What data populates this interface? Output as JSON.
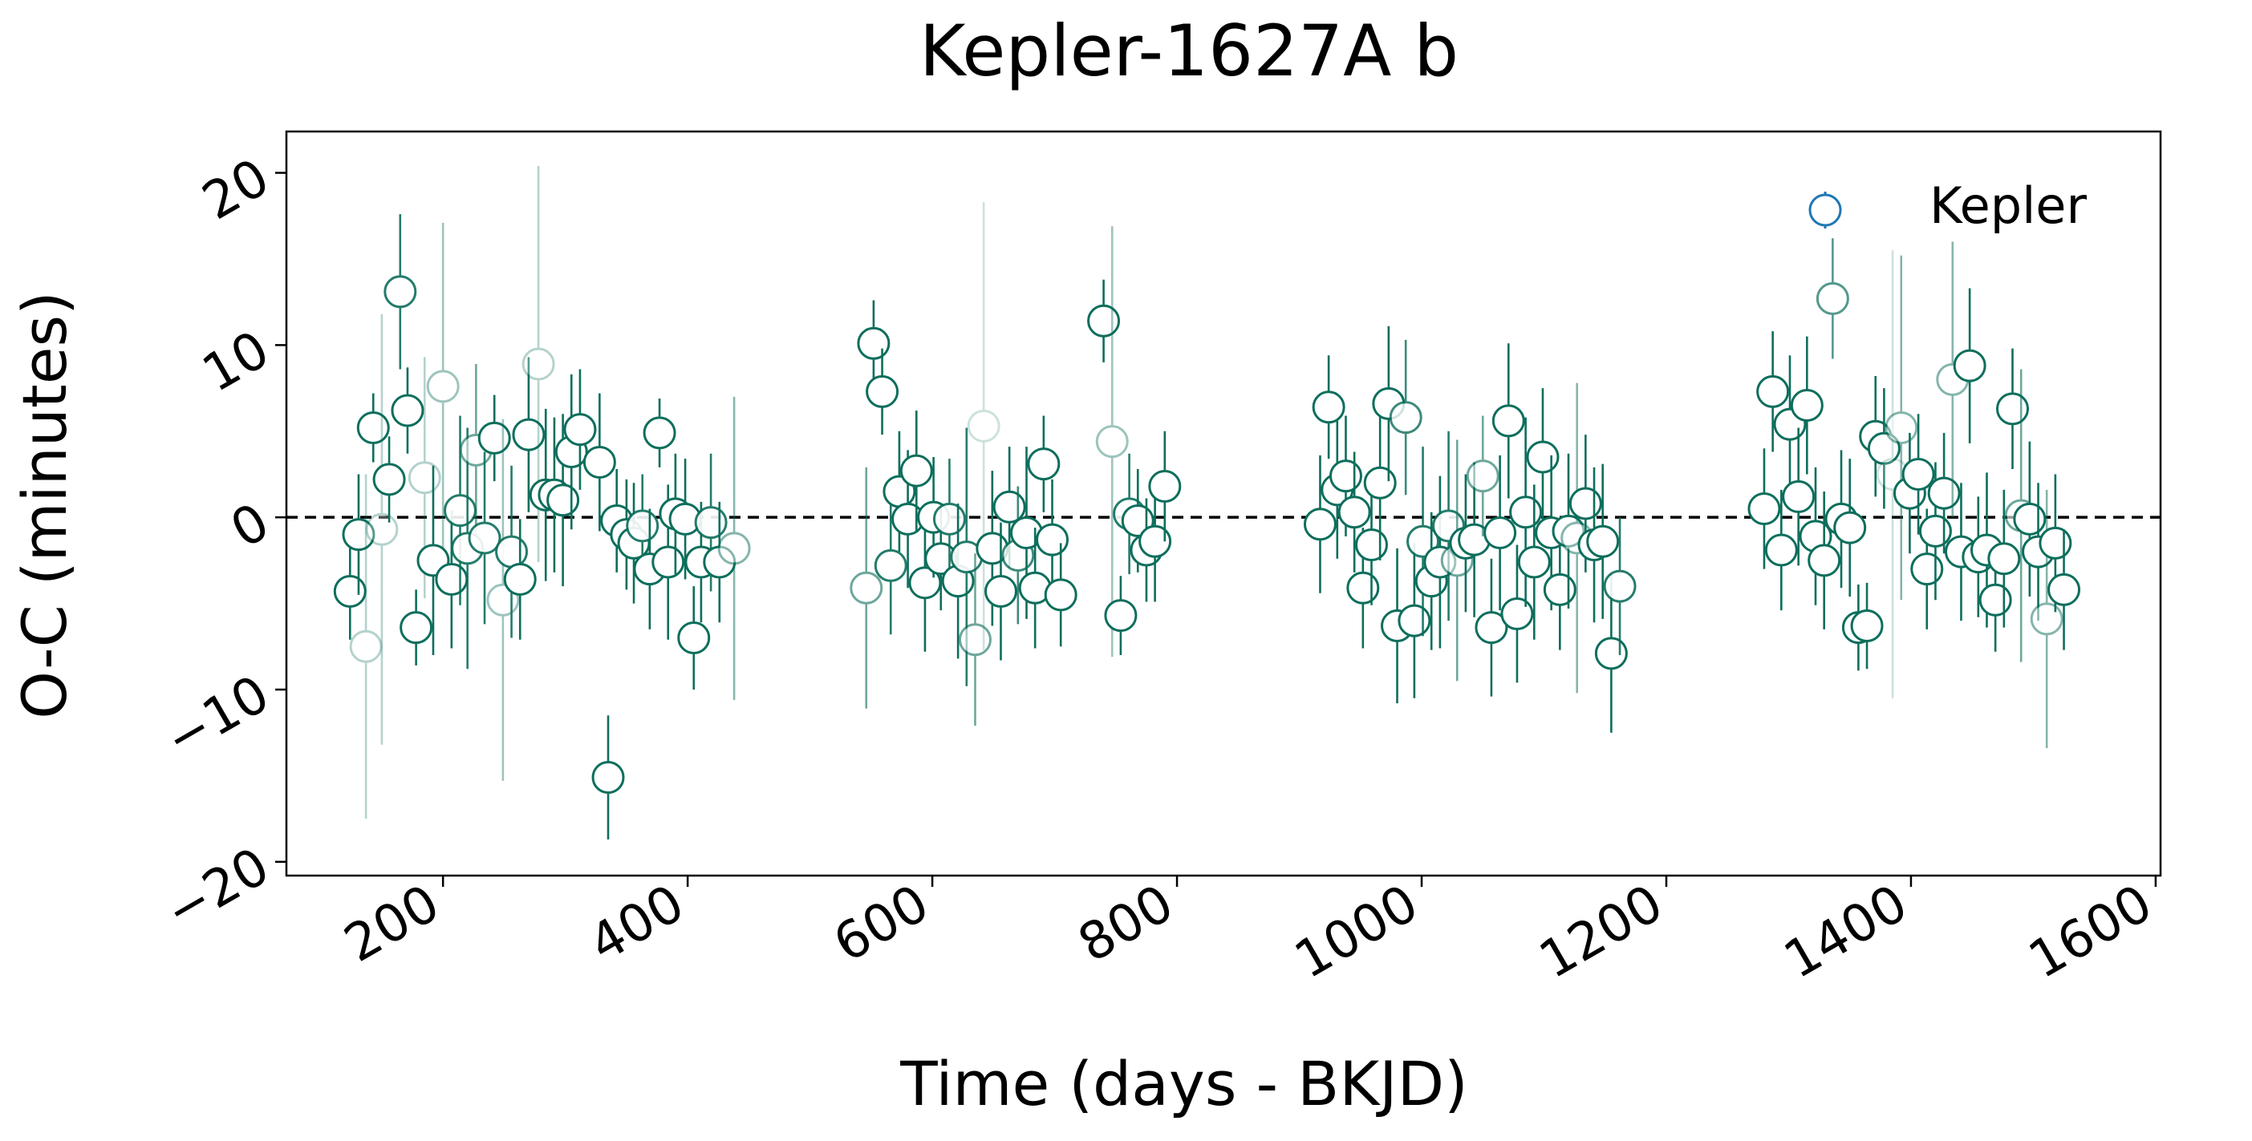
{
  "chart_data": {
    "type": "scatter",
    "title": "Kepler-1627A b",
    "xlabel": "Time (days - BKJD)",
    "ylabel": "O-C (minutes)",
    "xlim": [
      72,
      1604
    ],
    "ylim": [
      -20.8,
      22.4
    ],
    "xticks": [
      200,
      400,
      600,
      800,
      1000,
      1200,
      1400,
      1600
    ],
    "yticks": [
      -20,
      -10,
      0,
      10,
      20
    ],
    "xtick_labels": [
      "200",
      "400",
      "600",
      "800",
      "1000",
      "1200",
      "1400",
      "1600"
    ],
    "ytick_labels": [
      "−20",
      "−10",
      "0",
      "10",
      "20"
    ],
    "reference_line": 0,
    "grid": false,
    "legend": {
      "position": "top-right",
      "entries": [
        "Kepler"
      ]
    },
    "colors": {
      "marker": "#0d6e5c",
      "legend_marker": "#1f77b4",
      "face": "#ffffff",
      "ref_line": "#000000"
    },
    "series": [
      {
        "name": "Kepler",
        "points": [
          {
            "x": 124,
            "y": -4.3,
            "err": 2.8,
            "alpha": 1.0
          },
          {
            "x": 131,
            "y": -1.0,
            "err": 3.5,
            "alpha": 1.0
          },
          {
            "x": 137,
            "y": -7.5,
            "err": 10.0,
            "alpha": 0.3
          },
          {
            "x": 143,
            "y": 5.2,
            "err": 2.0,
            "alpha": 1.0
          },
          {
            "x": 150,
            "y": -0.7,
            "err": 12.5,
            "alpha": 0.3
          },
          {
            "x": 156,
            "y": 2.2,
            "err": 2.5,
            "alpha": 1.0
          },
          {
            "x": 165,
            "y": 13.1,
            "err": 4.5,
            "alpha": 0.9
          },
          {
            "x": 171,
            "y": 6.2,
            "err": 2.5,
            "alpha": 1.0
          },
          {
            "x": 178,
            "y": -6.4,
            "err": 2.2,
            "alpha": 1.0
          },
          {
            "x": 185,
            "y": 2.3,
            "err": 7.0,
            "alpha": 0.3
          },
          {
            "x": 192,
            "y": -2.5,
            "err": 5.5,
            "alpha": 1.0
          },
          {
            "x": 200,
            "y": 7.6,
            "err": 9.5,
            "alpha": 0.4
          },
          {
            "x": 207,
            "y": -3.6,
            "err": 4.0,
            "alpha": 1.0
          },
          {
            "x": 214,
            "y": 0.4,
            "err": 5.5,
            "alpha": 0.9
          },
          {
            "x": 220,
            "y": -1.8,
            "err": 7.0,
            "alpha": 0.9
          },
          {
            "x": 227,
            "y": 3.9,
            "err": 5.0,
            "alpha": 0.6
          },
          {
            "x": 234,
            "y": -1.2,
            "err": 5.0,
            "alpha": 0.9
          },
          {
            "x": 242,
            "y": 4.6,
            "err": 2.5,
            "alpha": 1.0
          },
          {
            "x": 249,
            "y": -4.8,
            "err": 10.5,
            "alpha": 0.4
          },
          {
            "x": 256,
            "y": -2.0,
            "err": 5.0,
            "alpha": 0.9
          },
          {
            "x": 263,
            "y": -3.6,
            "err": 3.5,
            "alpha": 1.0
          },
          {
            "x": 270,
            "y": 4.8,
            "err": 4.5,
            "alpha": 1.0
          },
          {
            "x": 278,
            "y": 8.9,
            "err": 11.5,
            "alpha": 0.3
          },
          {
            "x": 284,
            "y": 1.3,
            "err": 5.0,
            "alpha": 1.0
          },
          {
            "x": 291,
            "y": 1.3,
            "err": 4.5,
            "alpha": 1.0
          },
          {
            "x": 298,
            "y": 1.0,
            "err": 5.0,
            "alpha": 1.0
          },
          {
            "x": 305,
            "y": 3.8,
            "err": 4.5,
            "alpha": 1.0
          },
          {
            "x": 312,
            "y": 5.1,
            "err": 3.5,
            "alpha": 1.0
          },
          {
            "x": 328,
            "y": 3.2,
            "err": 4.0,
            "alpha": 1.0
          },
          {
            "x": 335,
            "y": -15.1,
            "err": 3.6,
            "alpha": 1.0
          },
          {
            "x": 342,
            "y": -0.2,
            "err": 3.0,
            "alpha": 1.0
          },
          {
            "x": 350,
            "y": -1.0,
            "err": 3.2,
            "alpha": 1.0
          },
          {
            "x": 356,
            "y": -1.5,
            "err": 3.5,
            "alpha": 1.0
          },
          {
            "x": 363,
            "y": -0.5,
            "err": 3.0,
            "alpha": 0.9
          },
          {
            "x": 369,
            "y": -3.0,
            "err": 3.5,
            "alpha": 1.0
          },
          {
            "x": 377,
            "y": 4.9,
            "err": 2.0,
            "alpha": 1.0
          },
          {
            "x": 384,
            "y": -2.6,
            "err": 4.5,
            "alpha": 1.0
          },
          {
            "x": 390,
            "y": 0.2,
            "err": 3.5,
            "alpha": 1.0
          },
          {
            "x": 398,
            "y": -0.1,
            "err": 3.5,
            "alpha": 1.0
          },
          {
            "x": 405,
            "y": -7.0,
            "err": 3.0,
            "alpha": 1.0
          },
          {
            "x": 411,
            "y": -2.6,
            "err": 3.5,
            "alpha": 1.0
          },
          {
            "x": 419,
            "y": -0.3,
            "err": 4.0,
            "alpha": 0.9
          },
          {
            "x": 426,
            "y": -2.6,
            "err": 3.5,
            "alpha": 1.0
          },
          {
            "x": 438,
            "y": -1.8,
            "err": 8.8,
            "alpha": 0.5
          },
          {
            "x": 546,
            "y": -4.1,
            "err": 7.0,
            "alpha": 0.6
          },
          {
            "x": 552,
            "y": 10.1,
            "err": 2.5,
            "alpha": 1.0
          },
          {
            "x": 559,
            "y": 7.3,
            "err": 2.5,
            "alpha": 1.0
          },
          {
            "x": 566,
            "y": -2.8,
            "err": 4.0,
            "alpha": 0.9
          },
          {
            "x": 573,
            "y": 1.5,
            "err": 3.5,
            "alpha": 1.0
          },
          {
            "x": 580,
            "y": -0.1,
            "err": 4.0,
            "alpha": 1.0
          },
          {
            "x": 587,
            "y": 2.7,
            "err": 3.5,
            "alpha": 1.0
          },
          {
            "x": 594,
            "y": -3.8,
            "err": 4.0,
            "alpha": 1.0
          },
          {
            "x": 601,
            "y": 0.0,
            "err": 3.5,
            "alpha": 1.0
          },
          {
            "x": 607,
            "y": -2.4,
            "err": 3.0,
            "alpha": 1.0
          },
          {
            "x": 614,
            "y": -0.1,
            "err": 3.5,
            "alpha": 0.9
          },
          {
            "x": 621,
            "y": -3.7,
            "err": 4.5,
            "alpha": 1.0
          },
          {
            "x": 628,
            "y": -2.3,
            "err": 7.5,
            "alpha": 0.9
          },
          {
            "x": 635,
            "y": -7.1,
            "err": 5.0,
            "alpha": 0.6
          },
          {
            "x": 642,
            "y": 5.3,
            "err": 13.0,
            "alpha": 0.2
          },
          {
            "x": 649,
            "y": -1.8,
            "err": 4.5,
            "alpha": 1.0
          },
          {
            "x": 656,
            "y": -4.3,
            "err": 4.0,
            "alpha": 1.0
          },
          {
            "x": 663,
            "y": 0.6,
            "err": 3.5,
            "alpha": 1.0
          },
          {
            "x": 670,
            "y": -2.2,
            "err": 4.0,
            "alpha": 0.8
          },
          {
            "x": 677,
            "y": -0.9,
            "err": 5.0,
            "alpha": 1.0
          },
          {
            "x": 684,
            "y": -4.1,
            "err": 3.5,
            "alpha": 1.0
          },
          {
            "x": 691,
            "y": 3.1,
            "err": 2.8,
            "alpha": 1.0
          },
          {
            "x": 698,
            "y": -1.3,
            "err": 3.5,
            "alpha": 1.0
          },
          {
            "x": 705,
            "y": -4.5,
            "err": 3.0,
            "alpha": 1.0
          },
          {
            "x": 740,
            "y": 11.4,
            "err": 2.4,
            "alpha": 1.0
          },
          {
            "x": 747,
            "y": 4.4,
            "err": 12.5,
            "alpha": 0.4
          },
          {
            "x": 754,
            "y": -5.7,
            "err": 2.3,
            "alpha": 1.0
          },
          {
            "x": 761,
            "y": 0.2,
            "err": 3.5,
            "alpha": 0.9
          },
          {
            "x": 768,
            "y": -0.2,
            "err": 3.0,
            "alpha": 1.0
          },
          {
            "x": 775,
            "y": -1.9,
            "err": 3.0,
            "alpha": 1.0
          },
          {
            "x": 782,
            "y": -1.4,
            "err": 3.5,
            "alpha": 1.0
          },
          {
            "x": 790,
            "y": 1.8,
            "err": 3.2,
            "alpha": 1.0
          },
          {
            "x": 917,
            "y": -0.4,
            "err": 4.0,
            "alpha": 1.0
          },
          {
            "x": 924,
            "y": 6.4,
            "err": 3.0,
            "alpha": 1.0
          },
          {
            "x": 931,
            "y": 1.6,
            "err": 4.0,
            "alpha": 1.0
          },
          {
            "x": 938,
            "y": 2.4,
            "err": 3.5,
            "alpha": 1.0
          },
          {
            "x": 945,
            "y": 0.3,
            "err": 3.5,
            "alpha": 1.0
          },
          {
            "x": 952,
            "y": -4.1,
            "err": 3.5,
            "alpha": 1.0
          },
          {
            "x": 959,
            "y": -1.6,
            "err": 3.5,
            "alpha": 1.0
          },
          {
            "x": 966,
            "y": 2.0,
            "err": 4.5,
            "alpha": 1.0
          },
          {
            "x": 973,
            "y": 6.6,
            "err": 4.5,
            "alpha": 1.0
          },
          {
            "x": 980,
            "y": -6.3,
            "err": 4.5,
            "alpha": 1.0
          },
          {
            "x": 987,
            "y": 5.8,
            "err": 4.5,
            "alpha": 0.8
          },
          {
            "x": 994,
            "y": -6.0,
            "err": 4.5,
            "alpha": 1.0
          },
          {
            "x": 1001,
            "y": -1.4,
            "err": 5.5,
            "alpha": 0.9
          },
          {
            "x": 1008,
            "y": -3.7,
            "err": 4.0,
            "alpha": 1.0
          },
          {
            "x": 1015,
            "y": -2.6,
            "err": 5.0,
            "alpha": 1.0
          },
          {
            "x": 1022,
            "y": -0.5,
            "err": 5.5,
            "alpha": 0.9
          },
          {
            "x": 1029,
            "y": -2.5,
            "err": 7.0,
            "alpha": 0.6
          },
          {
            "x": 1036,
            "y": -1.5,
            "err": 4.0,
            "alpha": 1.0
          },
          {
            "x": 1043,
            "y": -1.3,
            "err": 4.5,
            "alpha": 1.0
          },
          {
            "x": 1050,
            "y": 2.4,
            "err": 3.5,
            "alpha": 0.6
          },
          {
            "x": 1057,
            "y": -6.4,
            "err": 4.0,
            "alpha": 1.0
          },
          {
            "x": 1064,
            "y": -0.9,
            "err": 4.5,
            "alpha": 1.0
          },
          {
            "x": 1071,
            "y": 5.6,
            "err": 4.5,
            "alpha": 1.0
          },
          {
            "x": 1078,
            "y": -5.6,
            "err": 4.0,
            "alpha": 1.0
          },
          {
            "x": 1085,
            "y": 0.3,
            "err": 5.5,
            "alpha": 1.0
          },
          {
            "x": 1092,
            "y": -2.6,
            "err": 4.5,
            "alpha": 1.0
          },
          {
            "x": 1099,
            "y": 3.5,
            "err": 4.0,
            "alpha": 1.0
          },
          {
            "x": 1106,
            "y": -0.9,
            "err": 4.5,
            "alpha": 1.0
          },
          {
            "x": 1113,
            "y": -4.2,
            "err": 3.5,
            "alpha": 1.0
          },
          {
            "x": 1120,
            "y": -0.8,
            "err": 4.5,
            "alpha": 1.0
          },
          {
            "x": 1127,
            "y": -1.2,
            "err": 9.0,
            "alpha": 0.5
          },
          {
            "x": 1134,
            "y": 0.8,
            "err": 4.0,
            "alpha": 1.0
          },
          {
            "x": 1141,
            "y": -1.6,
            "err": 4.5,
            "alpha": 1.0
          },
          {
            "x": 1148,
            "y": -1.4,
            "err": 4.5,
            "alpha": 1.0
          },
          {
            "x": 1155,
            "y": -7.9,
            "err": 4.6,
            "alpha": 1.0
          },
          {
            "x": 1162,
            "y": -4.0,
            "err": 4.0,
            "alpha": 0.9
          },
          {
            "x": 1280,
            "y": 0.5,
            "err": 3.5,
            "alpha": 1.0
          },
          {
            "x": 1287,
            "y": 7.3,
            "err": 3.5,
            "alpha": 1.0
          },
          {
            "x": 1294,
            "y": -1.9,
            "err": 3.5,
            "alpha": 1.0
          },
          {
            "x": 1301,
            "y": 5.4,
            "err": 4.0,
            "alpha": 1.0
          },
          {
            "x": 1308,
            "y": 1.2,
            "err": 4.0,
            "alpha": 1.0
          },
          {
            "x": 1315,
            "y": 6.5,
            "err": 4.0,
            "alpha": 1.0
          },
          {
            "x": 1322,
            "y": -1.1,
            "err": 4.0,
            "alpha": 1.0
          },
          {
            "x": 1329,
            "y": -2.5,
            "err": 4.0,
            "alpha": 1.0
          },
          {
            "x": 1336,
            "y": 12.7,
            "err": 3.5,
            "alpha": 0.7
          },
          {
            "x": 1343,
            "y": -0.1,
            "err": 4.0,
            "alpha": 1.0
          },
          {
            "x": 1350,
            "y": -0.6,
            "err": 4.0,
            "alpha": 1.0
          },
          {
            "x": 1357,
            "y": -6.4,
            "err": 2.5,
            "alpha": 1.0
          },
          {
            "x": 1364,
            "y": -6.3,
            "err": 2.5,
            "alpha": 1.0
          },
          {
            "x": 1371,
            "y": 4.7,
            "err": 3.5,
            "alpha": 1.0
          },
          {
            "x": 1378,
            "y": 4.0,
            "err": 3.5,
            "alpha": 1.0
          },
          {
            "x": 1385,
            "y": 2.5,
            "err": 13.0,
            "alpha": 0.2
          },
          {
            "x": 1392,
            "y": 5.2,
            "err": 10.0,
            "alpha": 0.5
          },
          {
            "x": 1399,
            "y": 1.4,
            "err": 3.5,
            "alpha": 1.0
          },
          {
            "x": 1406,
            "y": 2.5,
            "err": 3.5,
            "alpha": 1.0
          },
          {
            "x": 1413,
            "y": -3.0,
            "err": 3.5,
            "alpha": 1.0
          },
          {
            "x": 1420,
            "y": -0.8,
            "err": 4.0,
            "alpha": 1.0
          },
          {
            "x": 1427,
            "y": 1.4,
            "err": 3.5,
            "alpha": 1.0
          },
          {
            "x": 1434,
            "y": 8.0,
            "err": 8.0,
            "alpha": 0.5
          },
          {
            "x": 1441,
            "y": -2.0,
            "err": 4.0,
            "alpha": 1.0
          },
          {
            "x": 1448,
            "y": 8.8,
            "err": 4.5,
            "alpha": 1.0
          },
          {
            "x": 1455,
            "y": -2.3,
            "err": 3.5,
            "alpha": 1.0
          },
          {
            "x": 1462,
            "y": -1.9,
            "err": 4.5,
            "alpha": 1.0
          },
          {
            "x": 1469,
            "y": -4.8,
            "err": 3.0,
            "alpha": 1.0
          },
          {
            "x": 1476,
            "y": -2.4,
            "err": 4.0,
            "alpha": 1.0
          },
          {
            "x": 1483,
            "y": 6.3,
            "err": 3.5,
            "alpha": 1.0
          },
          {
            "x": 1490,
            "y": 0.1,
            "err": 8.5,
            "alpha": 0.6
          },
          {
            "x": 1497,
            "y": -0.1,
            "err": 4.5,
            "alpha": 1.0
          },
          {
            "x": 1504,
            "y": -2.0,
            "err": 4.0,
            "alpha": 1.0
          },
          {
            "x": 1511,
            "y": -5.9,
            "err": 7.5,
            "alpha": 0.5
          },
          {
            "x": 1518,
            "y": -1.5,
            "err": 4.0,
            "alpha": 1.0
          },
          {
            "x": 1525,
            "y": -4.2,
            "err": 3.5,
            "alpha": 1.0
          }
        ]
      }
    ]
  }
}
